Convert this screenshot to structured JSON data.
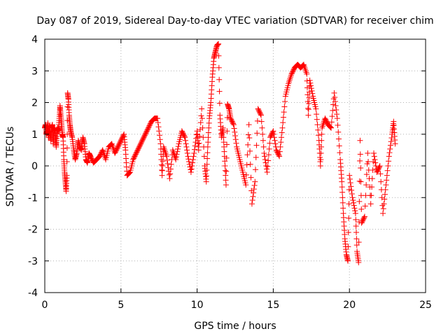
{
  "chart_data": {
    "type": "scatter",
    "title": "Day 087 of 2019, Sidereal Day-to-day VTEC variation (SDTVAR) for receiver chim",
    "xlabel": "GPS time / hours",
    "ylabel": "SDTVAR / TECUs",
    "xlim": [
      0,
      25
    ],
    "ylim": [
      -4,
      4
    ],
    "xticks": [
      "0",
      "5",
      "10",
      "15",
      "20",
      "25"
    ],
    "yticks": [
      "4",
      "3",
      "2",
      "1",
      "0",
      "-1",
      "-2",
      "-3",
      "-4"
    ],
    "grid": true,
    "marker": "+",
    "color": "#ff0000",
    "series": [
      {
        "name": "SDTVAR",
        "points": [
          [
            0.0,
            1.2
          ],
          [
            0.05,
            1.3
          ],
          [
            0.1,
            1.0
          ],
          [
            0.15,
            1.1
          ],
          [
            0.2,
            1.35
          ],
          [
            0.25,
            0.9
          ],
          [
            0.3,
            1.25
          ],
          [
            0.35,
            1.0
          ],
          [
            0.4,
            0.8
          ],
          [
            0.45,
            1.2
          ],
          [
            0.5,
            1.3
          ],
          [
            0.55,
            0.7
          ],
          [
            0.6,
            1.1
          ],
          [
            0.65,
            1.2
          ],
          [
            0.7,
            0.9
          ],
          [
            0.75,
            0.6
          ],
          [
            0.8,
            1.0
          ],
          [
            0.85,
            1.2
          ],
          [
            0.9,
            1.1
          ],
          [
            0.95,
            1.5
          ],
          [
            1.0,
            1.9
          ],
          [
            1.05,
            1.6
          ],
          [
            1.1,
            1.3
          ],
          [
            1.15,
            1.0
          ],
          [
            1.2,
            0.9
          ],
          [
            1.25,
            0.2
          ],
          [
            1.3,
            -0.2
          ],
          [
            1.35,
            -0.5
          ],
          [
            1.4,
            -0.8
          ],
          [
            1.45,
            -0.3
          ],
          [
            1.5,
            2.3
          ],
          [
            1.55,
            2.1
          ],
          [
            1.6,
            1.6
          ],
          [
            1.65,
            1.3
          ],
          [
            1.7,
            1.1
          ],
          [
            1.8,
            0.9
          ],
          [
            1.9,
            0.5
          ],
          [
            2.0,
            0.2
          ],
          [
            2.1,
            0.4
          ],
          [
            2.2,
            0.8
          ],
          [
            2.3,
            0.6
          ],
          [
            2.4,
            0.5
          ],
          [
            2.5,
            0.9
          ],
          [
            2.6,
            0.7
          ],
          [
            2.7,
            0.2
          ],
          [
            2.8,
            0.1
          ],
          [
            2.9,
            0.4
          ],
          [
            3.0,
            0.3
          ],
          [
            3.2,
            0.1
          ],
          [
            3.4,
            0.2
          ],
          [
            3.6,
            0.3
          ],
          [
            3.8,
            0.5
          ],
          [
            4.0,
            0.2
          ],
          [
            4.2,
            0.6
          ],
          [
            4.4,
            0.7
          ],
          [
            4.6,
            0.4
          ],
          [
            4.8,
            0.6
          ],
          [
            5.0,
            0.8
          ],
          [
            5.2,
            1.0
          ],
          [
            5.3,
            0.5
          ],
          [
            5.4,
            -0.3
          ],
          [
            5.6,
            -0.2
          ],
          [
            5.8,
            0.2
          ],
          [
            6.0,
            0.4
          ],
          [
            6.2,
            0.6
          ],
          [
            6.4,
            0.8
          ],
          [
            6.6,
            1.0
          ],
          [
            6.8,
            1.2
          ],
          [
            7.0,
            1.4
          ],
          [
            7.2,
            1.5
          ],
          [
            7.4,
            1.5
          ],
          [
            7.6,
            0.7
          ],
          [
            7.7,
            -0.3
          ],
          [
            7.8,
            0.6
          ],
          [
            8.0,
            0.3
          ],
          [
            8.2,
            -0.4
          ],
          [
            8.4,
            0.5
          ],
          [
            8.6,
            0.2
          ],
          [
            8.8,
            0.7
          ],
          [
            9.0,
            1.1
          ],
          [
            9.2,
            0.9
          ],
          [
            9.4,
            0.3
          ],
          [
            9.6,
            -0.2
          ],
          [
            9.8,
            0.4
          ],
          [
            10.0,
            1.1
          ],
          [
            10.1,
            0.5
          ],
          [
            10.3,
            1.8
          ],
          [
            10.5,
            0.0
          ],
          [
            10.6,
            -0.5
          ],
          [
            10.7,
            0.6
          ],
          [
            10.8,
            1.5
          ],
          [
            10.9,
            2.0
          ],
          [
            11.0,
            2.8
          ],
          [
            11.1,
            3.4
          ],
          [
            11.2,
            3.6
          ],
          [
            11.3,
            3.8
          ],
          [
            11.4,
            3.85
          ],
          [
            11.5,
            1.6
          ],
          [
            11.6,
            0.9
          ],
          [
            11.7,
            1.2
          ],
          [
            11.8,
            0.3
          ],
          [
            11.9,
            -0.6
          ],
          [
            12.0,
            1.95
          ],
          [
            12.1,
            1.8
          ],
          [
            12.2,
            1.5
          ],
          [
            12.4,
            1.3
          ],
          [
            12.6,
            0.6
          ],
          [
            12.8,
            0.2
          ],
          [
            13.0,
            -0.2
          ],
          [
            13.2,
            -0.6
          ],
          [
            13.4,
            1.3
          ],
          [
            13.6,
            -1.2
          ],
          [
            13.8,
            -0.5
          ],
          [
            14.0,
            1.8
          ],
          [
            14.2,
            1.6
          ],
          [
            14.4,
            0.4
          ],
          [
            14.6,
            -0.2
          ],
          [
            14.8,
            0.9
          ],
          [
            15.0,
            1.1
          ],
          [
            15.2,
            0.5
          ],
          [
            15.4,
            0.3
          ],
          [
            15.6,
            1.2
          ],
          [
            15.8,
            2.2
          ],
          [
            16.0,
            2.6
          ],
          [
            16.2,
            2.9
          ],
          [
            16.4,
            3.1
          ],
          [
            16.6,
            3.2
          ],
          [
            16.8,
            3.1
          ],
          [
            17.0,
            3.2
          ],
          [
            17.2,
            2.9
          ],
          [
            17.3,
            1.6
          ],
          [
            17.4,
            2.7
          ],
          [
            17.6,
            2.2
          ],
          [
            17.8,
            1.8
          ],
          [
            18.0,
            0.8
          ],
          [
            18.1,
            0.0
          ],
          [
            18.2,
            1.2
          ],
          [
            18.4,
            1.5
          ],
          [
            18.6,
            1.3
          ],
          [
            18.8,
            1.2
          ],
          [
            19.0,
            2.3
          ],
          [
            19.2,
            1.5
          ],
          [
            19.4,
            0.2
          ],
          [
            19.5,
            -0.5
          ],
          [
            19.6,
            -1.5
          ],
          [
            19.7,
            -2.3
          ],
          [
            19.8,
            -2.8
          ],
          [
            19.9,
            -3.0
          ],
          [
            20.0,
            -0.3
          ],
          [
            20.2,
            -1.0
          ],
          [
            20.4,
            -1.5
          ],
          [
            20.5,
            -2.7
          ],
          [
            20.6,
            -3.05
          ],
          [
            20.7,
            0.8
          ],
          [
            20.8,
            -1.8
          ],
          [
            21.0,
            -1.6
          ],
          [
            21.2,
            0.4
          ],
          [
            21.4,
            -1.2
          ],
          [
            21.6,
            0.4
          ],
          [
            21.8,
            -0.2
          ],
          [
            22.0,
            0.0
          ],
          [
            22.2,
            -1.5
          ],
          [
            22.4,
            -0.6
          ],
          [
            22.6,
            0.3
          ],
          [
            22.8,
            1.0
          ],
          [
            22.9,
            1.4
          ],
          [
            23.0,
            0.7
          ]
        ]
      }
    ]
  }
}
